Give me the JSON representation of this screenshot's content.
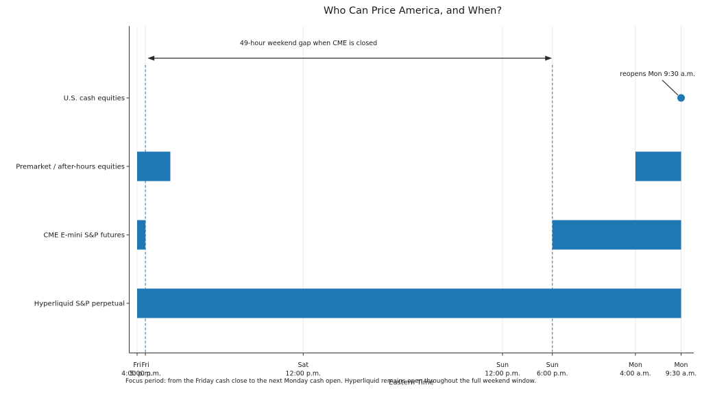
{
  "title": "Who Can Price America, and When?",
  "xlabel": "Eastern Time",
  "footnote": "Focus period: from the Friday cash close to the next Monday cash open. Hyperliquid remains open throughout the full weekend window.",
  "colors": {
    "bar": "#1f77b4",
    "guide": "#1f77b4",
    "grid": "#e8e8e8",
    "spine": "#333333",
    "arrow": "#2a2a2a",
    "text": "#1a1a1a"
  },
  "chart_data": {
    "type": "bar",
    "subtype": "horizontal-interval-timeline",
    "title": "Who Can Price America, and When?",
    "xlabel": "Eastern Time",
    "unit": "hours since Friday 4:00 p.m. Eastern Time",
    "xlim": [
      -1,
      67.2
    ],
    "grid": true,
    "legend": null,
    "categories": [
      "U.S. cash equities",
      "Premarket / after-hours equities",
      "CME E-mini S&P futures",
      "Hyperliquid S&P perpetual"
    ],
    "series": [
      {
        "name": "U.S. cash equities",
        "intervals": []
      },
      {
        "name": "Premarket / after-hours equities",
        "intervals": [
          [
            0,
            4
          ],
          [
            60,
            65.5
          ]
        ]
      },
      {
        "name": "CME E-mini S&P futures",
        "intervals": [
          [
            0,
            1
          ],
          [
            50,
            65.5
          ]
        ]
      },
      {
        "name": "Hyperliquid S&P perpetual",
        "intervals": [
          [
            0,
            65.5
          ]
        ]
      }
    ],
    "xticks": [
      {
        "hour": 0,
        "line1": "Fri",
        "line2": "4:00 p.m."
      },
      {
        "hour": 1,
        "line1": "Fri",
        "line2": "5:00 p.m."
      },
      {
        "hour": 20,
        "line1": "Sat",
        "line2": "12:00 p.m."
      },
      {
        "hour": 44,
        "line1": "Sun",
        "line2": "12:00 p.m."
      },
      {
        "hour": 50,
        "line1": "Sun",
        "line2": "6:00 p.m."
      },
      {
        "hour": 60,
        "line1": "Mon",
        "line2": "4:00 a.m."
      },
      {
        "hour": 65.5,
        "line1": "Mon",
        "line2": "9:30 a.m."
      }
    ],
    "guide_hours": [
      1,
      50
    ],
    "gap_annotation": {
      "label": "49-hour weekend gap when CME is closed",
      "from_hour": 1,
      "to_hour": 50
    },
    "reopen_annotation": {
      "label": "reopens Mon 9:30 a.m.",
      "hour": 65.5,
      "category": "U.S. cash equities"
    }
  }
}
